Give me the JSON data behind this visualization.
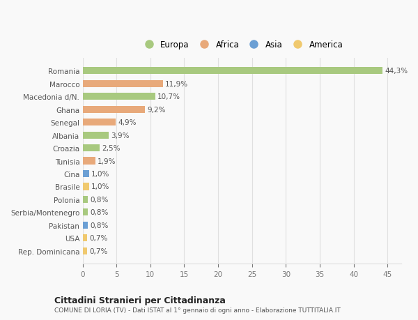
{
  "countries": [
    "Romania",
    "Marocco",
    "Macedonia d/N.",
    "Ghana",
    "Senegal",
    "Albania",
    "Croazia",
    "Tunisia",
    "Cina",
    "Brasile",
    "Polonia",
    "Serbia/Montenegro",
    "Pakistan",
    "USA",
    "Rep. Dominicana"
  ],
  "values": [
    44.3,
    11.9,
    10.7,
    9.2,
    4.9,
    3.9,
    2.5,
    1.9,
    1.0,
    1.0,
    0.8,
    0.8,
    0.8,
    0.7,
    0.7
  ],
  "labels": [
    "44,3%",
    "11,9%",
    "10,7%",
    "9,2%",
    "4,9%",
    "3,9%",
    "2,5%",
    "1,9%",
    "1,0%",
    "1,0%",
    "0,8%",
    "0,8%",
    "0,8%",
    "0,7%",
    "0,7%"
  ],
  "continents": [
    "Europa",
    "Africa",
    "Europa",
    "Africa",
    "Africa",
    "Europa",
    "Europa",
    "Africa",
    "Asia",
    "America",
    "Europa",
    "Europa",
    "Asia",
    "America",
    "America"
  ],
  "continent_colors": {
    "Europa": "#a8c97f",
    "Africa": "#e8a97a",
    "Asia": "#6b9fd4",
    "America": "#f0c96e"
  },
  "legend_labels": [
    "Europa",
    "Africa",
    "Asia",
    "America"
  ],
  "legend_colors": [
    "#a8c97f",
    "#e8a97a",
    "#6b9fd4",
    "#f0c96e"
  ],
  "title": "Cittadini Stranieri per Cittadinanza",
  "subtitle": "COMUNE DI LORIA (TV) - Dati ISTAT al 1° gennaio di ogni anno - Elaborazione TUTTITALIA.IT",
  "xlim": [
    0,
    47
  ],
  "xticks": [
    0,
    5,
    10,
    15,
    20,
    25,
    30,
    35,
    40,
    45
  ],
  "background_color": "#f9f9f9",
  "bar_height": 0.55,
  "grid_color": "#e0e0e0"
}
